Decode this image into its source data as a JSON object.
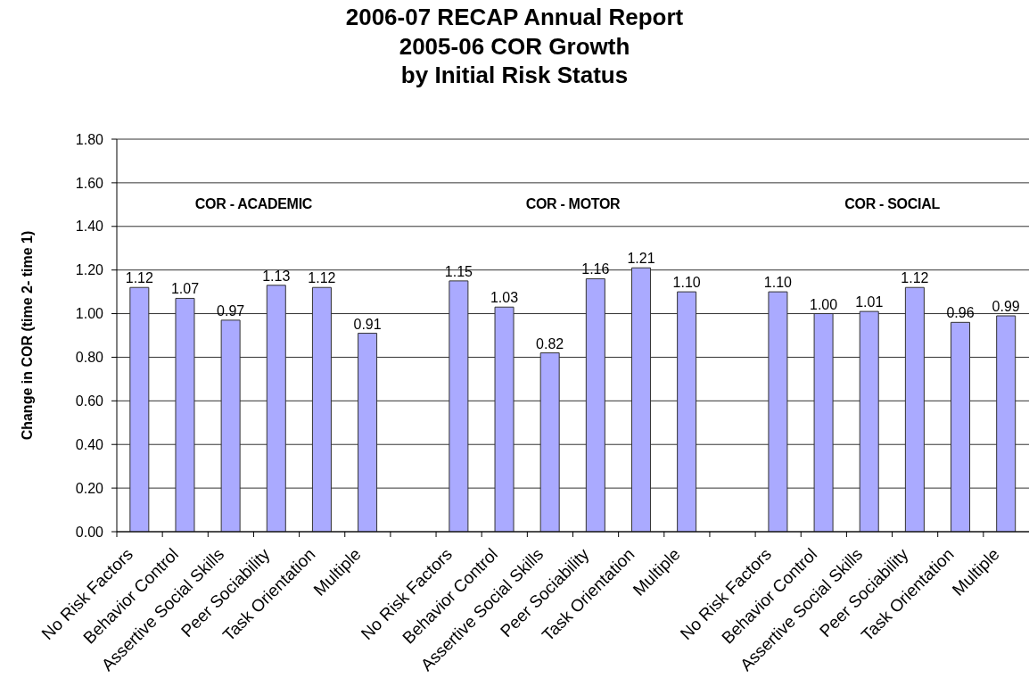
{
  "chart_data": {
    "type": "bar",
    "title": "2006-07 RECAP Annual Report\n2005-06 COR Growth\nby Initial Risk Status",
    "ylabel": "Change in COR (time 2- time 1)",
    "annotations": [
      "COR - ACADEMIC",
      "COR - MOTOR",
      "COR - SOCIAL"
    ],
    "categories": [
      "No Risk Factors",
      "Behavior Control",
      "Assertive Social Skills",
      "Peer Sociability",
      "Task Orientation",
      "Multiple",
      null,
      "No Risk Factors",
      "Behavior Control",
      "Assertive Social Skills",
      "Peer Sociability",
      "Task Orientation",
      "Multiple",
      null,
      "No Risk Factors",
      "Behavior Control",
      "Assertive Social Skills",
      "Peer Sociability",
      "Task Orientation",
      "Multiple"
    ],
    "values": [
      1.12,
      1.07,
      0.97,
      1.13,
      1.12,
      0.91,
      null,
      1.15,
      1.03,
      0.82,
      1.16,
      1.21,
      1.1,
      null,
      1.1,
      1.0,
      1.01,
      1.12,
      0.96,
      0.99
    ],
    "value_labels": [
      "1.12",
      "1.07",
      "0.97",
      "1.13",
      "1.12",
      "0.91",
      null,
      "1.15",
      "1.03",
      "0.82",
      "1.16",
      "1.21",
      "1.10",
      null,
      "1.10",
      "1.00",
      "1.01",
      "1.12",
      "0.96",
      "0.99"
    ],
    "color": "#aaaaff",
    "ylim": [
      0,
      1.8
    ],
    "yticks": [
      {
        "value": 0,
        "label": "0.00"
      },
      {
        "value": 0.2,
        "label": "0.20"
      },
      {
        "value": 0.4,
        "label": "0.40"
      },
      {
        "value": 0.6,
        "label": "0.60"
      },
      {
        "value": 0.8,
        "label": "0.80"
      },
      {
        "value": 1,
        "label": "1.00"
      },
      {
        "value": 1.2,
        "label": "1.20"
      },
      {
        "value": 1.4,
        "label": "1.40"
      },
      {
        "value": 1.6,
        "label": "1.60"
      },
      {
        "value": 1.8,
        "label": "1.80"
      }
    ],
    "grid": "y"
  }
}
